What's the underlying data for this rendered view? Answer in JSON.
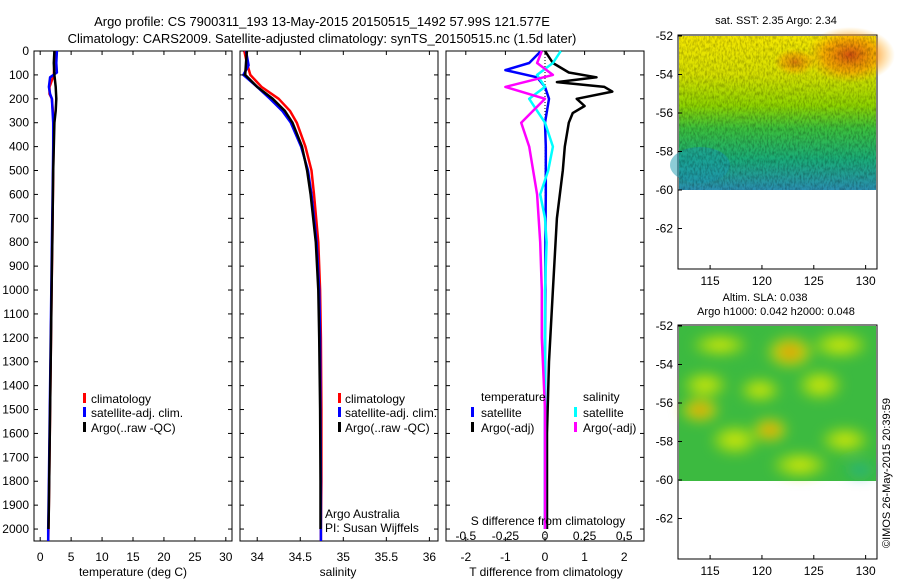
{
  "titles": {
    "line1": "Argo profile: CS 7900311_193 13-May-2015 20150515_1492 57.99S 121.577E",
    "line2": "Climatology: CARS2009. Satellite-adjusted climatology: synTS_20150515.nc (1.5d later)"
  },
  "colors": {
    "climatology": "#ff0000",
    "satellite": "#0000ff",
    "argo": "#000000",
    "salinity_satellite": "#00ffff",
    "salinity_argo": "#ff00ff"
  },
  "depth_ticks": [
    "0",
    "100",
    "200",
    "300",
    "400",
    "500",
    "600",
    "700",
    "800",
    "900",
    "1000",
    "1100",
    "1200",
    "1300",
    "1400",
    "1500",
    "1600",
    "1700",
    "1800",
    "1900",
    "2000"
  ],
  "legend": {
    "climatology": "climatology",
    "satellite_adj": "satellite-adj. clim.",
    "argo": "Argo(..raw -QC)"
  },
  "diff_legend": {
    "temperature": "temperature",
    "salinity": "salinity",
    "satellite": "satellite",
    "argo": "Argo(-adj)"
  },
  "annotations": {
    "argo_australia": "Argo Australia",
    "pi": "PI: Susan Wijffels"
  },
  "maps": {
    "sst_title": "sat. SST: 2.35 Argo: 2.34",
    "sla_title1": "Altim. SLA: 0.038",
    "sla_title2": "Argo h1000: 0.042 h2000: 0.048",
    "lat_ticks": [
      "-52",
      "-54",
      "-56",
      "-58",
      "-60",
      "-62"
    ],
    "lon_ticks": [
      "115",
      "120",
      "125",
      "130"
    ],
    "credit": "©IMOS 26-May-2015 20:39:59"
  },
  "chart_data": [
    {
      "type": "line",
      "name": "temperature-panel",
      "xlabel": "temperature (deg C)",
      "ylabel": "",
      "xlim": [
        -1,
        31
      ],
      "ylim": [
        2050,
        0
      ],
      "xticks": [
        "0",
        "5",
        "10",
        "15",
        "20",
        "25",
        "30"
      ],
      "series": [
        {
          "key": "clim",
          "depth": [
            0,
            50,
            100,
            150,
            180,
            200,
            300,
            400,
            600,
            800,
            1000,
            1200,
            1500,
            1800,
            2000,
            2050
          ],
          "values": [
            2.4,
            2.3,
            2.2,
            1.5,
            1.5,
            1.9,
            2.2,
            2.15,
            2.05,
            1.95,
            1.85,
            1.75,
            1.6,
            1.45,
            1.35,
            1.3
          ]
        },
        {
          "key": "sat",
          "depth": [
            0,
            50,
            90,
            110,
            150,
            180,
            200,
            300,
            400,
            600,
            800,
            1000,
            1200,
            1500,
            1800,
            2000,
            2050
          ],
          "values": [
            2.7,
            2.6,
            2.7,
            1.6,
            1.4,
            1.6,
            1.9,
            2.1,
            2.1,
            2.0,
            1.9,
            1.8,
            1.7,
            1.55,
            1.4,
            1.3,
            1.3
          ]
        },
        {
          "key": "argo",
          "depth": [
            0,
            50,
            100,
            150,
            200,
            250,
            300,
            400,
            500,
            600,
            700,
            800,
            900,
            1000,
            1100,
            1200,
            1300,
            1400,
            1500,
            1600,
            1700,
            1800,
            1900,
            2000
          ],
          "values": [
            2.3,
            2.2,
            2.3,
            2.5,
            2.6,
            2.5,
            2.3,
            2.2,
            2.1,
            2.05,
            2.0,
            1.95,
            1.9,
            1.85,
            1.8,
            1.75,
            1.7,
            1.65,
            1.6,
            1.55,
            1.5,
            1.45,
            1.4,
            1.35
          ]
        }
      ]
    },
    {
      "type": "line",
      "name": "salinity-panel",
      "xlabel": "salinity",
      "ylabel": "",
      "xlim": [
        33.8,
        36.1
      ],
      "ylim": [
        2050,
        0
      ],
      "xticks": [
        "34",
        "34.5",
        "35",
        "35.5",
        "36"
      ],
      "series": [
        {
          "key": "clim",
          "depth": [
            0,
            50,
            100,
            150,
            200,
            250,
            300,
            400,
            500,
            600,
            800,
            1000,
            1200,
            1500,
            1800,
            2000,
            2050
          ],
          "values": [
            33.85,
            33.88,
            33.92,
            34.05,
            34.25,
            34.38,
            34.46,
            34.56,
            34.63,
            34.66,
            34.71,
            34.73,
            34.74,
            34.745,
            34.745,
            34.74,
            34.74
          ]
        },
        {
          "key": "sat",
          "depth": [
            0,
            60,
            100,
            150,
            200,
            250,
            300,
            400,
            500,
            600,
            800,
            1000,
            1200,
            1500,
            1800,
            2000,
            2050
          ],
          "values": [
            33.87,
            33.9,
            33.84,
            34.0,
            34.15,
            34.29,
            34.39,
            34.51,
            34.59,
            34.63,
            34.69,
            34.72,
            34.73,
            34.735,
            34.74,
            34.74,
            34.74
          ]
        },
        {
          "key": "argo",
          "depth": [
            0,
            50,
            100,
            150,
            200,
            250,
            300,
            400,
            500,
            600,
            700,
            800,
            1000,
            1200,
            1500,
            1800,
            2000
          ],
          "values": [
            33.88,
            33.87,
            33.86,
            34.0,
            34.18,
            34.32,
            34.41,
            34.52,
            34.58,
            34.62,
            34.65,
            34.68,
            34.71,
            34.72,
            34.73,
            34.735,
            34.735
          ]
        }
      ]
    },
    {
      "type": "line",
      "name": "difference-panel",
      "xlabel": "T difference from climatology",
      "x2label": "S difference from climatology",
      "xlim": [
        -2.5,
        2.5
      ],
      "ylim": [
        2050,
        0
      ],
      "xticks": [
        "-2",
        "-1",
        "0",
        "1",
        "2"
      ],
      "x2ticks": [
        "-0.5",
        "-0.25",
        "0",
        "0.25",
        "0.5"
      ],
      "series": [
        {
          "key": "t_sat",
          "depth": [
            0,
            50,
            80,
            110,
            150,
            200,
            250,
            300,
            400,
            600,
            800,
            1000,
            1200,
            1500,
            1800,
            2000
          ],
          "values": [
            -0.1,
            -0.4,
            -1.0,
            -0.2,
            0.0,
            0.1,
            0.05,
            0.0,
            0.02,
            0.02,
            0.01,
            0.01,
            0.0,
            0.0,
            0.0,
            0.0
          ]
        },
        {
          "key": "t_argo",
          "depth": [
            0,
            50,
            90,
            110,
            130,
            150,
            170,
            200,
            230,
            260,
            300,
            350,
            400,
            500,
            700,
            1000,
            1300,
            1600,
            1900,
            2000
          ],
          "values": [
            0.0,
            0.2,
            0.6,
            1.3,
            0.3,
            1.5,
            1.7,
            0.8,
            1.0,
            0.7,
            0.6,
            0.55,
            0.5,
            0.45,
            0.3,
            0.2,
            0.1,
            0.05,
            0.05,
            0.05
          ]
        },
        {
          "key": "s_sat",
          "depth": [
            0,
            50,
            100,
            150,
            200,
            250,
            300,
            400,
            500,
            600,
            700,
            800,
            1000,
            1500,
            2000
          ],
          "values": [
            0.1,
            0.05,
            -0.05,
            0.0,
            -0.1,
            -0.05,
            0.0,
            0.05,
            0.02,
            -0.03,
            0.0,
            0.01,
            0.0,
            0.0,
            0.0
          ]
        },
        {
          "key": "s_argo",
          "depth": [
            0,
            50,
            100,
            150,
            200,
            300,
            400,
            600,
            800,
            1000,
            1200,
            1500,
            2000
          ],
          "values": [
            -0.02,
            -0.05,
            0.05,
            -0.25,
            0.0,
            -0.15,
            -0.1,
            -0.05,
            -0.03,
            -0.02,
            -0.02,
            0.0,
            0.0
          ]
        }
      ]
    },
    {
      "type": "heatmap",
      "name": "sst-map",
      "lon_range": [
        112,
        131
      ],
      "lat_range": [
        -60,
        -52
      ],
      "xticks": [
        "115",
        "120",
        "125",
        "130"
      ],
      "yticks": [
        "-52",
        "-54",
        "-56",
        "-58",
        "-60",
        "-62"
      ]
    },
    {
      "type": "heatmap",
      "name": "sla-map",
      "lon_range": [
        112,
        131
      ],
      "lat_range": [
        -60,
        -52
      ],
      "xticks": [
        "115",
        "120",
        "125",
        "130"
      ],
      "yticks": [
        "-52",
        "-54",
        "-56",
        "-58",
        "-60",
        "-62"
      ]
    }
  ]
}
